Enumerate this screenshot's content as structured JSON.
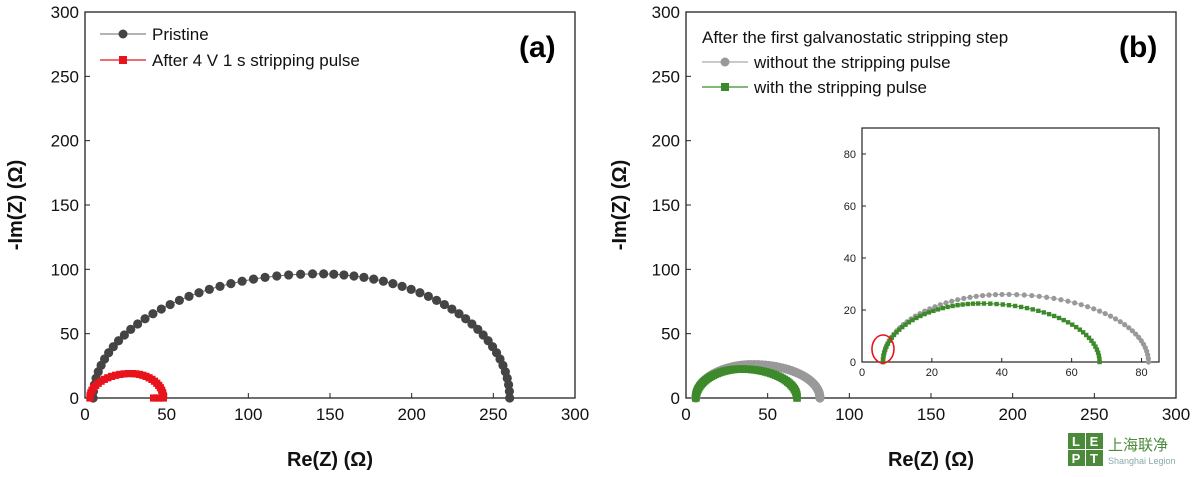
{
  "colors": {
    "pristine": "#444444",
    "red": "#e8141c",
    "gray": "#999999",
    "green": "#3c8a2a"
  },
  "chart_data": [
    {
      "type": "scatter",
      "panel_label": "(a)",
      "xlabel": "Re(Z) (Ω)",
      "ylabel": "-Im(Z) (Ω)",
      "xlim": [
        0,
        300
      ],
      "ylim": [
        0,
        300
      ],
      "xticks": [
        "0",
        "50",
        "100",
        "150",
        "200",
        "250",
        "300"
      ],
      "yticks": [
        "0",
        "50",
        "100",
        "150",
        "200",
        "250",
        "300"
      ],
      "legend_position": "top-left",
      "series": [
        {
          "name": "Pristine",
          "color": "#444444",
          "marker": "circle",
          "arc": {
            "x_start": 5,
            "x_end": 260,
            "peak_x": 143,
            "peak_y": 96.5,
            "n": 60
          }
        },
        {
          "name": "After 4 V 1 s stripping pulse",
          "color": "#e8141c",
          "marker": "square",
          "arc": {
            "x_start": 3,
            "x_end": 48,
            "peak_x": 28,
            "peak_y": 19,
            "n": 30,
            "tail_to_x": 42
          }
        }
      ]
    },
    {
      "type": "scatter",
      "panel_label": "(b)",
      "xlabel": "Re(Z) (Ω)",
      "ylabel": "-Im(Z) (Ω)",
      "xlim": [
        0,
        300
      ],
      "ylim": [
        0,
        300
      ],
      "xticks": [
        "0",
        "50",
        "100",
        "150",
        "200",
        "250",
        "300"
      ],
      "yticks": [
        "0",
        "50",
        "100",
        "150",
        "200",
        "250",
        "300"
      ],
      "legend_title": "After the first galvanostatic stripping step",
      "legend_position": "top-left",
      "series": [
        {
          "name": "without the stripping pulse",
          "color": "#999999",
          "marker": "circle",
          "arc": {
            "x_start": 6,
            "x_end": 82,
            "peak_x": 41,
            "peak_y": 26,
            "n": 60
          }
        },
        {
          "name": "with the stripping pulse",
          "color": "#3c8a2a",
          "marker": "square",
          "arc": {
            "x_start": 6,
            "x_end": 68,
            "peak_x": 34,
            "peak_y": 22.5,
            "n": 60
          }
        }
      ],
      "inset": {
        "xlim": [
          0,
          85
        ],
        "ylim": [
          0,
          90
        ],
        "xticks": [
          "0",
          "20",
          "40",
          "60",
          "80"
        ],
        "yticks": [
          "0",
          "20",
          "40",
          "60",
          "80"
        ],
        "highlight_circle": {
          "x": 6,
          "y": 5
        }
      }
    }
  ],
  "watermark": {
    "logo_letters": [
      "L",
      "E",
      "P",
      "T"
    ],
    "name_cn": "上海联净",
    "name_en": "Shanghai Legion"
  }
}
